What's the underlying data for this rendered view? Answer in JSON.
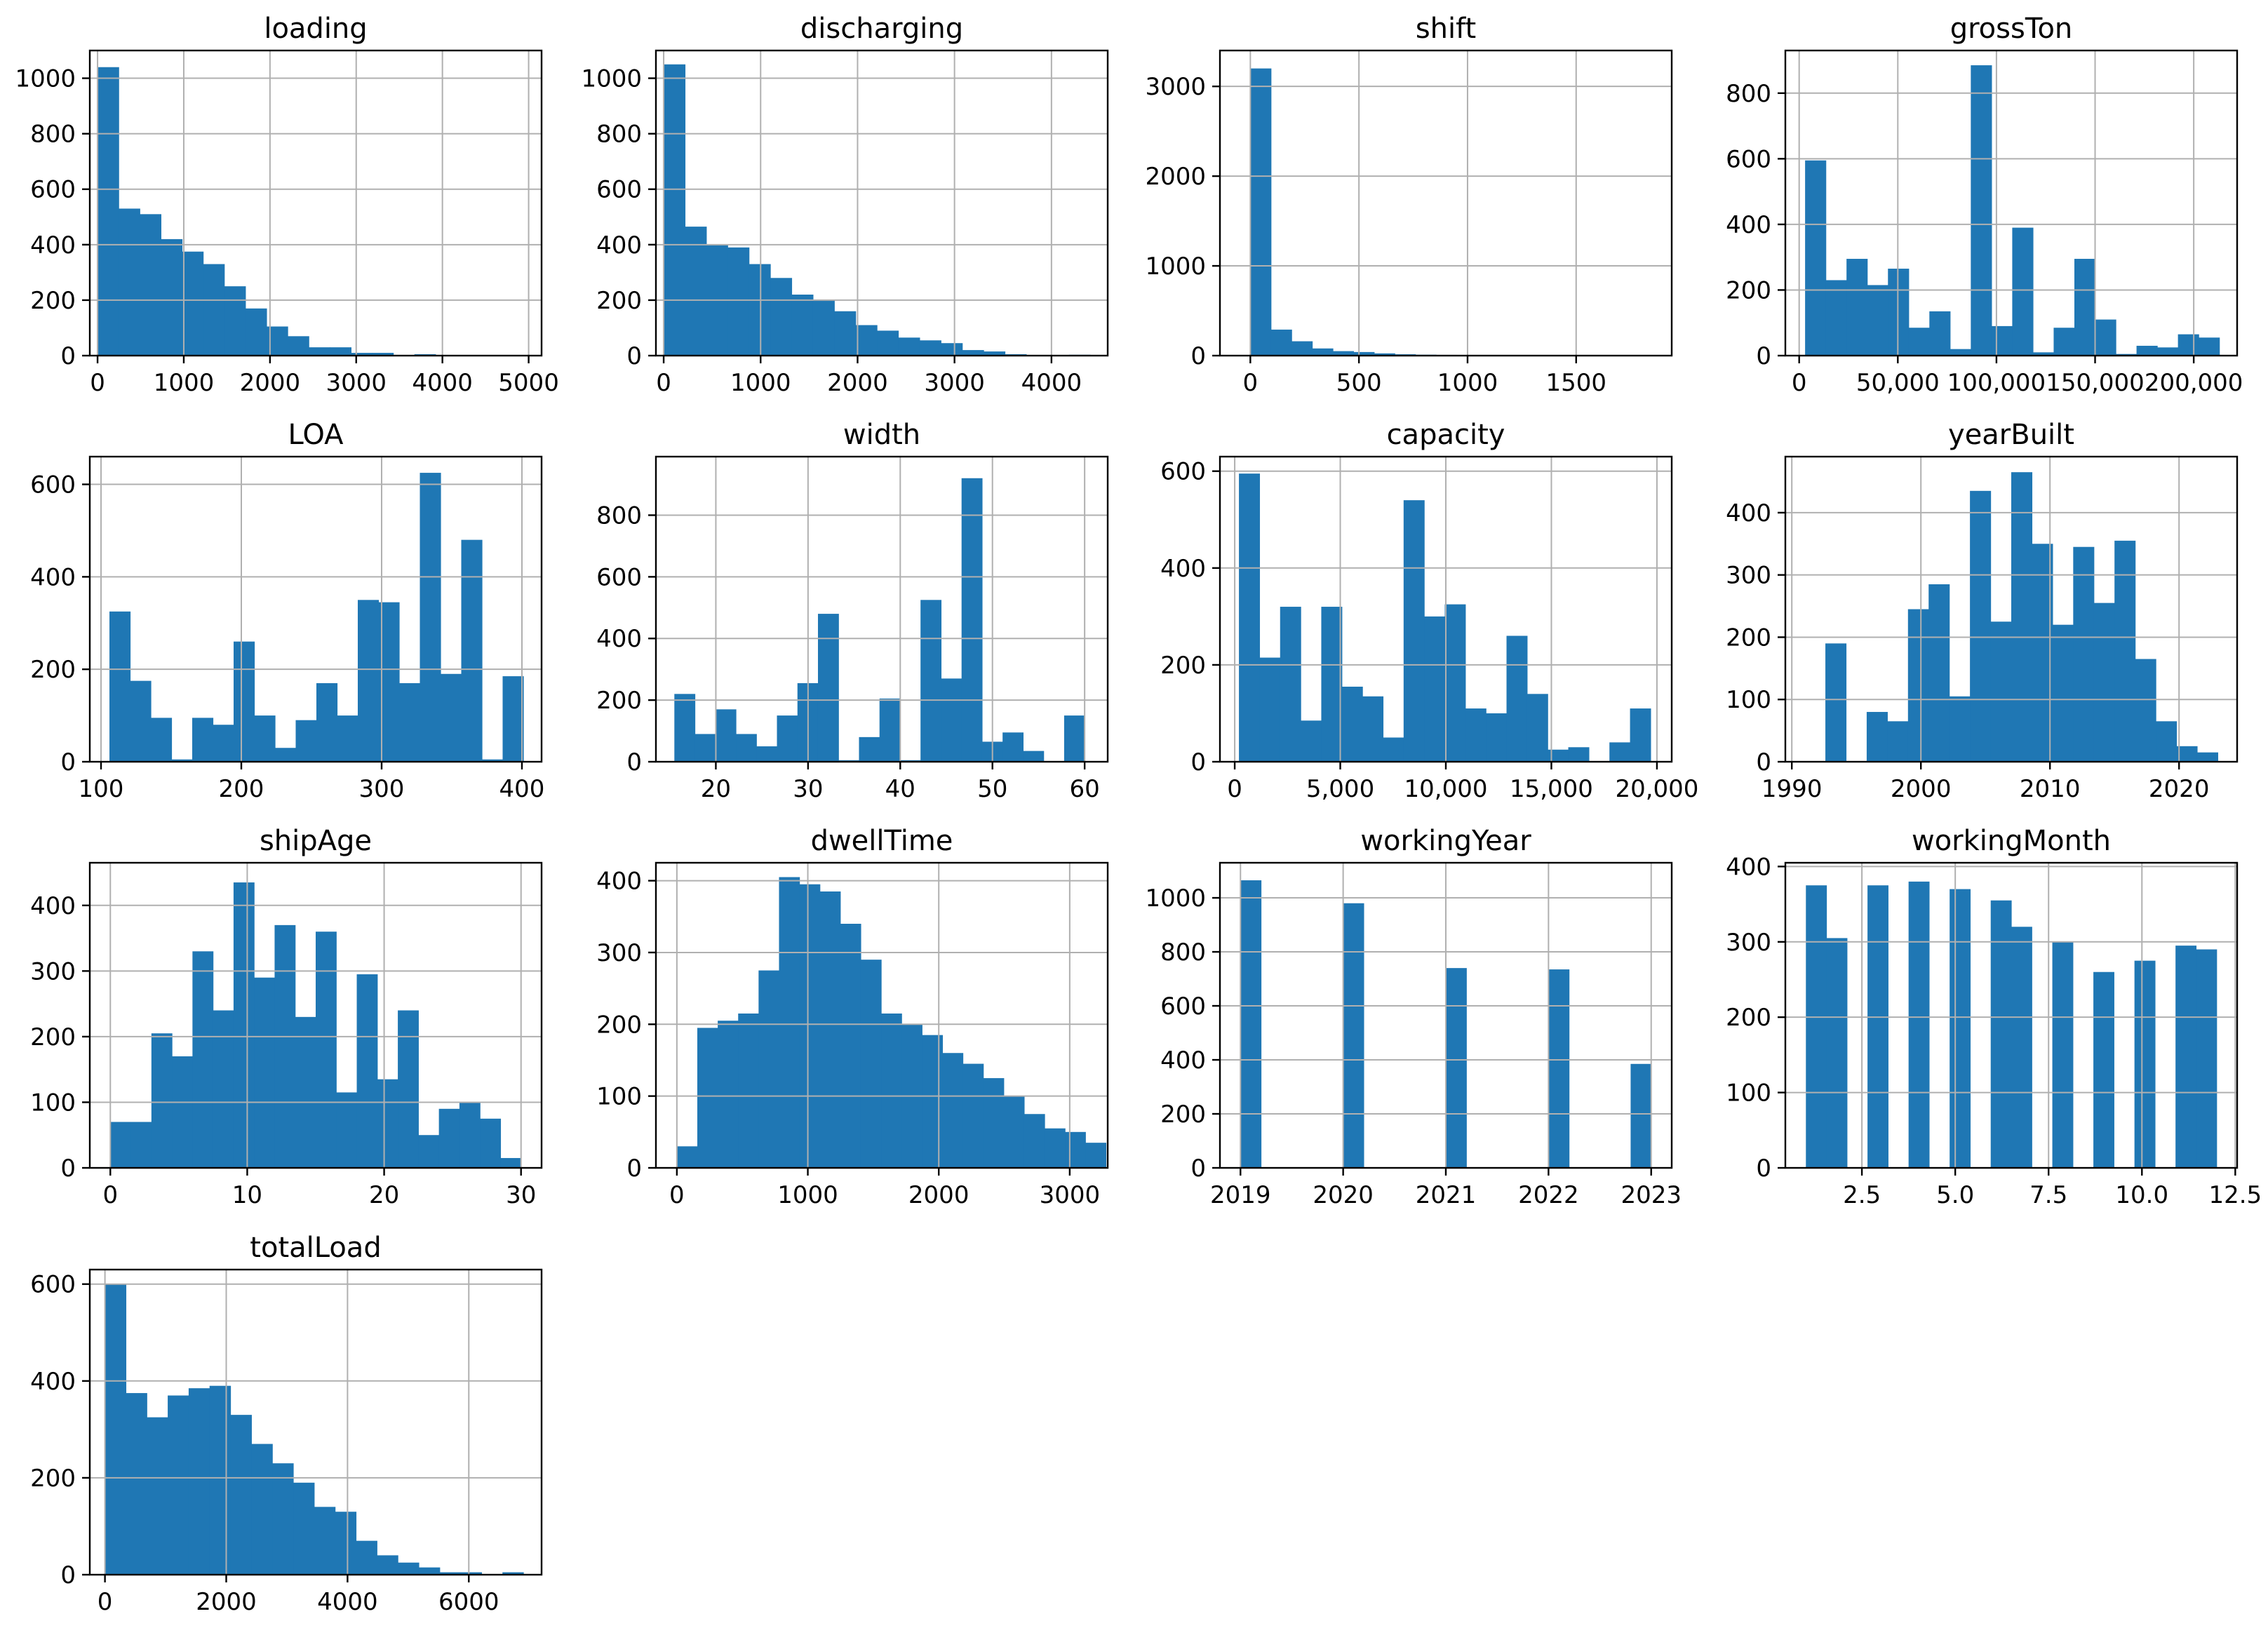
{
  "figure": {
    "bar_color": "#1f77b4",
    "grid_color": "#b0b0b0"
  },
  "chart_data": [
    {
      "name": "loading",
      "title": "loading",
      "type": "bar",
      "xlim": [
        -90,
        5150
      ],
      "ylim": [
        0,
        1100
      ],
      "bin_start": 0,
      "bin_width": 245,
      "values": [
        1040,
        530,
        510,
        420,
        375,
        330,
        250,
        170,
        105,
        70,
        30,
        30,
        10,
        10,
        0,
        5,
        0,
        0,
        0,
        0
      ],
      "xticks": [
        0,
        1000,
        2000,
        3000,
        4000,
        5000
      ],
      "xtick_labels": [
        "0",
        "1000",
        "2000",
        "3000",
        "4000",
        "5000"
      ],
      "yticks": [
        0,
        200,
        400,
        600,
        800,
        1000
      ],
      "ytick_labels": [
        "0",
        "200",
        "400",
        "600",
        "800",
        "1000"
      ]
    },
    {
      "name": "discharging",
      "title": "discharging",
      "type": "bar",
      "xlim": [
        -80,
        4580
      ],
      "ylim": [
        0,
        1100
      ],
      "bin_start": 0,
      "bin_width": 220,
      "values": [
        1050,
        465,
        400,
        390,
        330,
        280,
        220,
        200,
        160,
        110,
        90,
        65,
        55,
        45,
        20,
        15,
        5,
        0,
        0,
        3
      ],
      "xticks": [
        0,
        1000,
        2000,
        3000,
        4000
      ],
      "xtick_labels": [
        "0",
        "1000",
        "2000",
        "3000",
        "4000"
      ],
      "yticks": [
        0,
        200,
        400,
        600,
        800,
        1000
      ],
      "ytick_labels": [
        "0",
        "200",
        "400",
        "600",
        "800",
        "1000"
      ]
    },
    {
      "name": "shift",
      "title": "shift",
      "type": "bar",
      "xlim": [
        -140,
        1940
      ],
      "ylim": [
        0,
        3400
      ],
      "bin_start": 0,
      "bin_width": 95,
      "values": [
        3200,
        290,
        160,
        80,
        50,
        40,
        25,
        15,
        10,
        8,
        5,
        5,
        3,
        3,
        0,
        0,
        0,
        0,
        0,
        2
      ],
      "xticks": [
        0,
        500,
        1000,
        1500
      ],
      "xtick_labels": [
        "0",
        "500",
        "1000",
        "1500"
      ],
      "yticks": [
        0,
        1000,
        2000,
        3000
      ],
      "ytick_labels": [
        "0",
        "1000",
        "2000",
        "3000"
      ]
    },
    {
      "name": "grossTon",
      "title": "grossTon",
      "type": "bar",
      "xlim": [
        -7000,
        222000
      ],
      "ylim": [
        0,
        930
      ],
      "bin_start": 3000,
      "bin_width": 10500,
      "values": [
        595,
        230,
        295,
        215,
        265,
        85,
        135,
        20,
        885,
        90,
        390,
        10,
        85,
        295,
        110,
        5,
        30,
        25,
        65,
        55
      ],
      "xticks": [
        0,
        50000,
        100000,
        150000,
        200000
      ],
      "xtick_labels": [
        "0",
        "50,000",
        "100,000",
        "150,000",
        "200,000"
      ],
      "yticks": [
        0,
        200,
        400,
        600,
        800
      ],
      "ytick_labels": [
        "0",
        "200",
        "400",
        "600",
        "800"
      ]
    },
    {
      "name": "LOA",
      "title": "LOA",
      "type": "bar",
      "xlim": [
        92,
        414
      ],
      "ylim": [
        0,
        660
      ],
      "bin_start": 106,
      "bin_width": 14.75,
      "values": [
        325,
        175,
        95,
        5,
        95,
        80,
        260,
        100,
        30,
        90,
        170,
        100,
        350,
        345,
        170,
        625,
        190,
        480,
        5,
        185
      ],
      "xticks": [
        100,
        200,
        300,
        400
      ],
      "xtick_labels": [
        "100",
        "200",
        "300",
        "400"
      ],
      "yticks": [
        0,
        200,
        400,
        600
      ],
      "ytick_labels": [
        "0",
        "200",
        "400",
        "600"
      ]
    },
    {
      "name": "width",
      "title": "width",
      "type": "bar",
      "xlim": [
        13.5,
        62.5
      ],
      "ylim": [
        0,
        990
      ],
      "bin_start": 15.5,
      "bin_width": 2.225,
      "values": [
        220,
        90,
        170,
        90,
        50,
        150,
        255,
        480,
        5,
        80,
        205,
        5,
        525,
        270,
        920,
        65,
        95,
        35,
        0,
        150
      ],
      "xticks": [
        20,
        30,
        40,
        50,
        60
      ],
      "xtick_labels": [
        "20",
        "30",
        "40",
        "50",
        "60"
      ],
      "yticks": [
        0,
        200,
        400,
        600,
        800
      ],
      "ytick_labels": [
        "0",
        "200",
        "400",
        "600",
        "800"
      ]
    },
    {
      "name": "capacity",
      "title": "capacity",
      "type": "bar",
      "xlim": [
        -700,
        20700
      ],
      "ylim": [
        0,
        630
      ],
      "bin_start": 200,
      "bin_width": 975,
      "values": [
        595,
        215,
        320,
        85,
        320,
        155,
        135,
        50,
        540,
        300,
        325,
        110,
        100,
        260,
        140,
        25,
        30,
        0,
        40,
        110
      ],
      "xticks": [
        0,
        5000,
        10000,
        15000,
        20000
      ],
      "xtick_labels": [
        "0",
        "5,000",
        "10,000",
        "15,000",
        "20,000"
      ],
      "yticks": [
        0,
        200,
        400,
        600
      ],
      "ytick_labels": [
        "0",
        "200",
        "400",
        "600"
      ]
    },
    {
      "name": "yearBuilt",
      "title": "yearBuilt",
      "type": "bar",
      "xlim": [
        1989.5,
        2024.5
      ],
      "ylim": [
        0,
        490
      ],
      "bin_start": 1991,
      "bin_width": 1.6,
      "values": [
        0,
        190,
        0,
        80,
        65,
        245,
        285,
        105,
        435,
        225,
        465,
        350,
        220,
        345,
        255,
        355,
        165,
        65,
        25,
        15
      ],
      "xticks": [
        1990,
        2000,
        2010,
        2020
      ],
      "xtick_labels": [
        "1990",
        "2000",
        "2010",
        "2020"
      ],
      "yticks": [
        0,
        100,
        200,
        300,
        400
      ],
      "ytick_labels": [
        "0",
        "100",
        "200",
        "300",
        "400"
      ]
    },
    {
      "name": "shipAge",
      "title": "shipAge",
      "type": "bar",
      "xlim": [
        -1.5,
        31.5
      ],
      "ylim": [
        0,
        465
      ],
      "bin_start": 0,
      "bin_width": 1.5,
      "values": [
        70,
        70,
        205,
        170,
        330,
        240,
        435,
        290,
        370,
        230,
        360,
        115,
        295,
        135,
        240,
        50,
        90,
        100,
        75,
        15
      ],
      "xticks": [
        0,
        10,
        20,
        30
      ],
      "xtick_labels": [
        "0",
        "10",
        "20",
        "30"
      ],
      "yticks": [
        0,
        100,
        200,
        300,
        400
      ],
      "ytick_labels": [
        "0",
        "100",
        "200",
        "300",
        "400"
      ]
    },
    {
      "name": "dwellTime",
      "title": "dwellTime",
      "type": "bar",
      "xlim": [
        -160,
        3290
      ],
      "ylim": [
        0,
        425
      ],
      "bin_start": 0,
      "bin_width": 156,
      "values": [
        30,
        195,
        205,
        215,
        275,
        405,
        395,
        385,
        340,
        290,
        215,
        200,
        185,
        160,
        145,
        125,
        100,
        75,
        55,
        50,
        35
      ],
      "xticks": [
        0,
        1000,
        2000,
        3000
      ],
      "xtick_labels": [
        "0",
        "1000",
        "2000",
        "3000"
      ],
      "yticks": [
        0,
        100,
        200,
        300,
        400
      ],
      "ytick_labels": [
        "0",
        "100",
        "200",
        "300",
        "400"
      ]
    },
    {
      "name": "workingYear",
      "title": "workingYear",
      "type": "bar",
      "xlim": [
        2018.8,
        2023.2
      ],
      "ylim": [
        0,
        1130
      ],
      "bin_start": 2019,
      "bin_width": 0.2,
      "values": [
        1065,
        0,
        0,
        0,
        0,
        980,
        0,
        0,
        0,
        0,
        740,
        0,
        0,
        0,
        0,
        735,
        0,
        0,
        0,
        385
      ],
      "xticks": [
        2019,
        2020,
        2021,
        2022,
        2023
      ],
      "xtick_labels": [
        "2019",
        "2020",
        "2021",
        "2022",
        "2023"
      ],
      "yticks": [
        0,
        200,
        400,
        600,
        800,
        1000
      ],
      "ytick_labels": [
        "0",
        "200",
        "400",
        "600",
        "800",
        "1000"
      ]
    },
    {
      "name": "workingMonth",
      "title": "workingMonth",
      "type": "bar",
      "xlim": [
        0.45,
        12.55
      ],
      "ylim": [
        0,
        405
      ],
      "bin_start": 1,
      "bin_width": 0.55,
      "values": [
        375,
        305,
        0,
        375,
        0,
        380,
        0,
        370,
        0,
        355,
        320,
        0,
        300,
        0,
        260,
        0,
        275,
        0,
        295,
        290
      ],
      "xticks": [
        2.5,
        5.0,
        7.5,
        10.0,
        12.5
      ],
      "xtick_labels": [
        "2.5",
        "5.0",
        "7.5",
        "10.0",
        "12.5"
      ],
      "yticks": [
        0,
        100,
        200,
        300,
        400
      ],
      "ytick_labels": [
        "0",
        "100",
        "200",
        "300",
        "400"
      ]
    },
    {
      "name": "totalLoad",
      "title": "totalLoad",
      "type": "bar",
      "xlim": [
        -250,
        7200
      ],
      "ylim": [
        0,
        630
      ],
      "bin_start": 0,
      "bin_width": 345,
      "values": [
        600,
        375,
        325,
        370,
        385,
        390,
        330,
        270,
        230,
        190,
        140,
        130,
        70,
        40,
        25,
        15,
        5,
        5,
        0,
        5
      ],
      "xticks": [
        0,
        2000,
        4000,
        6000
      ],
      "xtick_labels": [
        "0",
        "2000",
        "4000",
        "6000"
      ],
      "yticks": [
        0,
        200,
        400,
        600
      ],
      "ytick_labels": [
        "0",
        "200",
        "400",
        "600"
      ]
    }
  ]
}
